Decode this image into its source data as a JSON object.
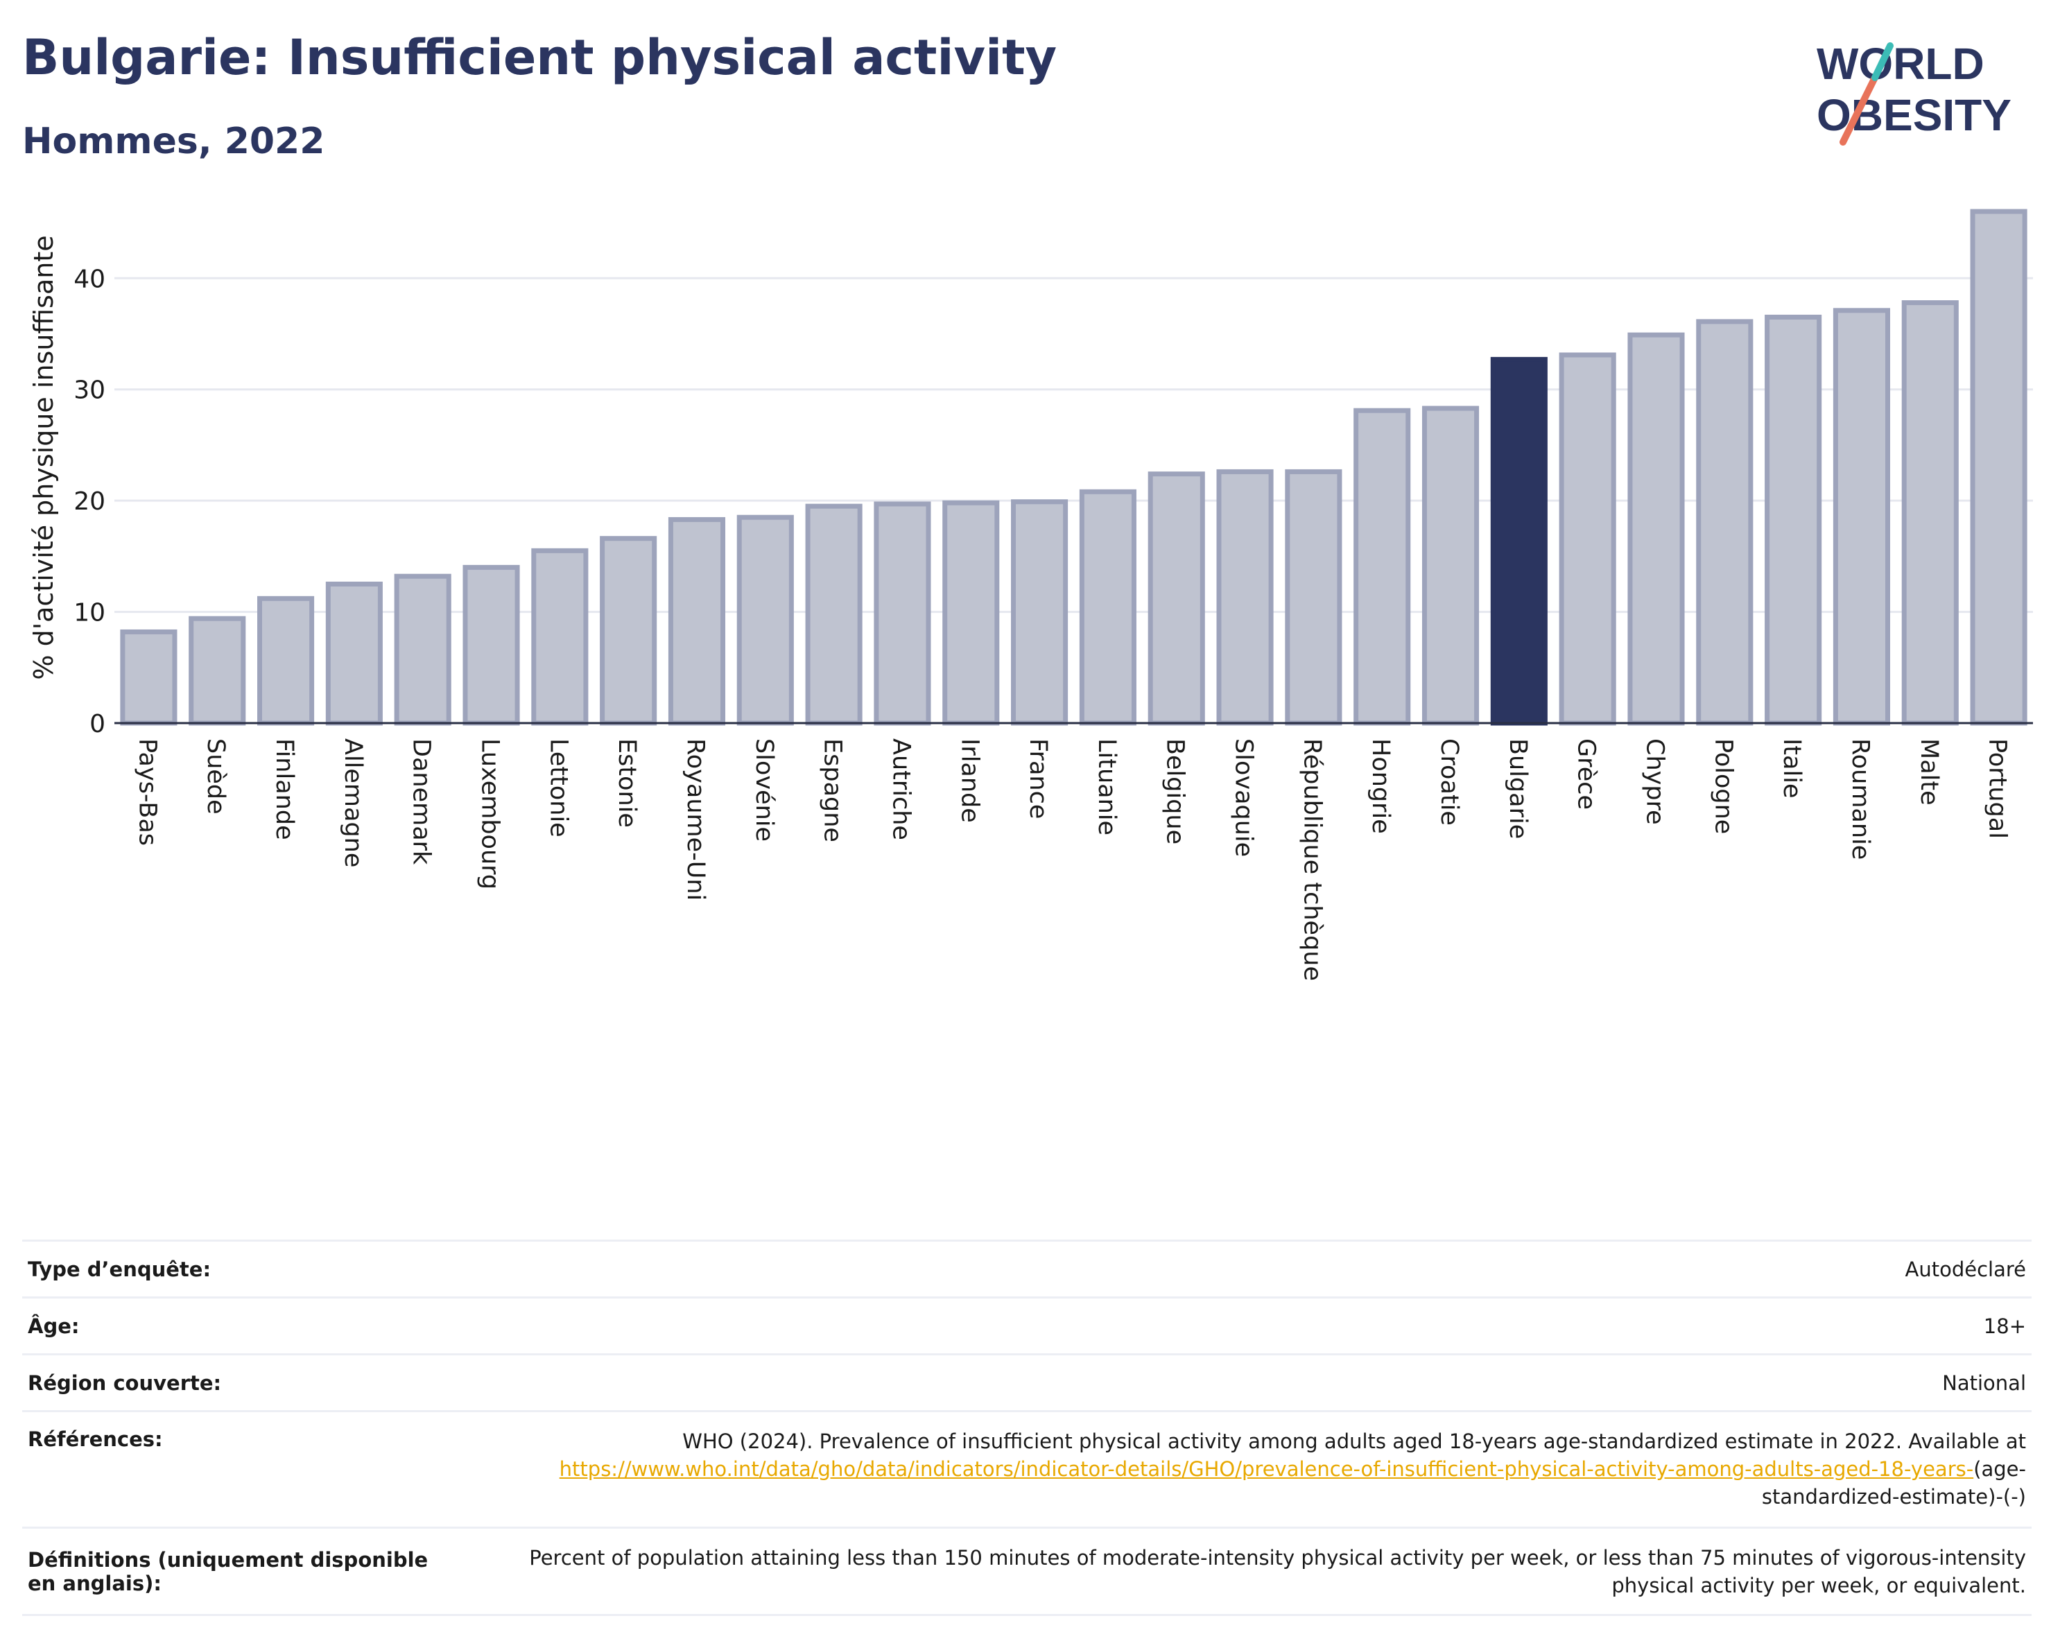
{
  "title": "Bulgarie: Insufficient physical activity",
  "subtitle": "Hommes, 2022",
  "logo": {
    "line1": "WORLD",
    "line2": "OBESITY",
    "colors": [
      "#2b3560",
      "#e8735a",
      "#3cbcb6"
    ]
  },
  "colors": {
    "bar": "#bfc3d0",
    "bar_border": "#9da3bb",
    "highlight": "#2b3560",
    "text": "#2b3560",
    "link": "#e8a800"
  },
  "chart_data": {
    "type": "bar",
    "title": "",
    "xlabel": "",
    "ylabel": "% d'activité physique insuffisante",
    "ylim": [
      0,
      46.5
    ],
    "yticks": [
      0,
      10,
      20,
      30,
      40
    ],
    "grid": true,
    "highlight": "Bulgarie",
    "categories": [
      "Pays-Bas",
      "Suède",
      "Finlande",
      "Allemagne",
      "Danemark",
      "Luxembourg",
      "Lettonie",
      "Estonie",
      "Royaume-Uni",
      "Slovénie",
      "Espagne",
      "Autriche",
      "Irlande",
      "France",
      "Lituanie",
      "Belgique",
      "Slovaquie",
      "République tchèque",
      "Hongrie",
      "Croatie",
      "Bulgarie",
      "Grèce",
      "Chypre",
      "Pologne",
      "Italie",
      "Roumanie",
      "Malte",
      "Portugal"
    ],
    "values": [
      8.2,
      9.4,
      11.2,
      12.5,
      13.2,
      14.0,
      15.5,
      16.6,
      18.3,
      18.5,
      19.5,
      19.7,
      19.8,
      19.9,
      20.8,
      22.4,
      22.6,
      22.6,
      28.1,
      28.3,
      32.7,
      33.1,
      34.9,
      36.1,
      36.5,
      37.1,
      37.8,
      46.0
    ]
  },
  "info": [
    {
      "key": "Type d’enquête:",
      "value": "Autodéclaré"
    },
    {
      "key": "Âge:",
      "value": "18+"
    },
    {
      "key": "Région couverte:",
      "value": "National"
    },
    {
      "key": "Références:",
      "value": "WHO (2024). Prevalence of insufficient physical activity among adults aged 18-years age-standardized estimate in 2022. Available at",
      "link": "https://www.who.int/data/gho/data/indicators/indicator-details/GHO/prevalence-of-insufficient-physical-activity-among-adults-aged-18-years-",
      "suffix": "(age-standardized-estimate)-(-)"
    },
    {
      "key": "Définitions (uniquement disponible en anglais):",
      "value": "Percent of population attaining less than 150 minutes of moderate-intensity physical activity per week, or less than 75 minutes of vigorous-intensity physical activity per week, or equivalent."
    }
  ]
}
